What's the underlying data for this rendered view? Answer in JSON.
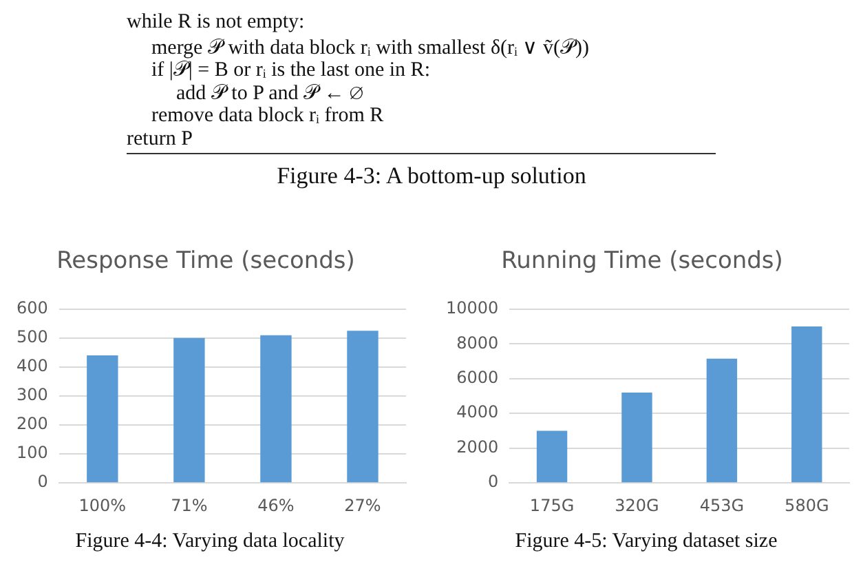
{
  "chart_data": [
    {
      "type": "other",
      "annotations": [
        "while R is not empty:",
        "merge 𝒫 with data block rᵢ with smallest δ(rᵢ ∨ ṽ(𝒫))",
        "if |𝒫| = B or rᵢ is the last one in R:",
        "add 𝒫 to P and 𝒫 ← ∅",
        "remove data block rᵢ from R",
        "return P",
        "Figure 4-3: A bottom-up solution"
      ]
    },
    {
      "type": "bar",
      "title": "Response Time (seconds)",
      "categories": [
        "100%",
        "71%",
        "46%",
        "27%"
      ],
      "values": [
        440,
        500,
        510,
        525
      ],
      "color": "#5b9bd5",
      "ylim": [
        0,
        600
      ],
      "yticks": [
        0,
        100,
        200,
        300,
        400,
        500,
        600
      ],
      "grid": "y",
      "annotations": [
        "Figure 4-4: Varying data locality"
      ]
    },
    {
      "type": "bar",
      "title": "Running Time (seconds)",
      "categories": [
        "175G",
        "320G",
        "453G",
        "580G"
      ],
      "values": [
        3000,
        5200,
        7150,
        9000
      ],
      "color": "#5b9bd5",
      "ylim": [
        0,
        10000
      ],
      "yticks": [
        0,
        2000,
        4000,
        6000,
        8000,
        10000
      ],
      "grid": "y",
      "annotations": [
        "Figure 4-5: Varying dataset size"
      ]
    }
  ]
}
